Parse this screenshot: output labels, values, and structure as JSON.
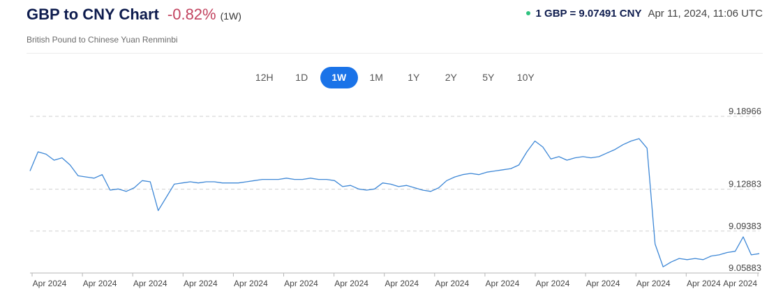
{
  "header": {
    "title": "GBP to CNY Chart",
    "change": "-0.82%",
    "period": "(1W)",
    "subtitle": "British Pound to Chinese Yuan Renminbi",
    "rate": "1 GBP = 9.07491 CNY",
    "timestamp": "Apr 11, 2024, 11:06 UTC"
  },
  "tabs": [
    {
      "label": "12H",
      "active": false
    },
    {
      "label": "1D",
      "active": false
    },
    {
      "label": "1W",
      "active": true
    },
    {
      "label": "1M",
      "active": false
    },
    {
      "label": "1Y",
      "active": false
    },
    {
      "label": "2Y",
      "active": false
    },
    {
      "label": "5Y",
      "active": false
    },
    {
      "label": "10Y",
      "active": false
    }
  ],
  "colors": {
    "line": "#3d87d6",
    "live_dot": "#2ec27e",
    "active_tab": "#1a73e8",
    "negative": "#c2435f"
  },
  "chart_data": {
    "type": "line",
    "title": "",
    "xlabel": "",
    "ylabel": "",
    "ylim": [
      9.05883,
      9.18966
    ],
    "grid": true,
    "y_ticks": [
      "9.18966",
      "9.12883",
      "9.09383",
      "9.05883"
    ],
    "y_tick_values": [
      9.18966,
      9.12883,
      9.09383,
      9.05883
    ],
    "x_tick_labels": [
      "Apr 2024",
      "Apr 2024",
      "Apr 2024",
      "Apr 2024",
      "Apr 2024",
      "Apr 2024",
      "Apr 2024",
      "Apr 2024",
      "Apr 2024",
      "Apr 2024",
      "Apr 2024",
      "Apr 2024",
      "Apr 2024",
      "Apr 2024",
      "Apr 2024"
    ],
    "series": [
      {
        "values": [
          9.144,
          9.16,
          9.158,
          9.153,
          9.155,
          9.149,
          9.14,
          9.139,
          9.138,
          9.141,
          9.128,
          9.129,
          9.127,
          9.13,
          9.136,
          9.135,
          9.111,
          9.122,
          9.133,
          9.134,
          9.135,
          9.134,
          9.135,
          9.135,
          9.134,
          9.134,
          9.134,
          9.135,
          9.136,
          9.137,
          9.137,
          9.137,
          9.138,
          9.137,
          9.137,
          9.138,
          9.137,
          9.137,
          9.136,
          9.131,
          9.132,
          9.129,
          9.128,
          9.129,
          9.134,
          9.133,
          9.131,
          9.132,
          9.13,
          9.128,
          9.127,
          9.13,
          9.136,
          9.139,
          9.141,
          9.142,
          9.141,
          9.143,
          9.144,
          9.145,
          9.146,
          9.149,
          9.16,
          9.169,
          9.164,
          9.154,
          9.156,
          9.153,
          9.155,
          9.156,
          9.155,
          9.156,
          9.159,
          9.162,
          9.166,
          9.169,
          9.171,
          9.163,
          9.083,
          9.064,
          9.068,
          9.071,
          9.07,
          9.071,
          9.07,
          9.073,
          9.074,
          9.076,
          9.077,
          9.089,
          9.074,
          9.075
        ]
      }
    ]
  }
}
